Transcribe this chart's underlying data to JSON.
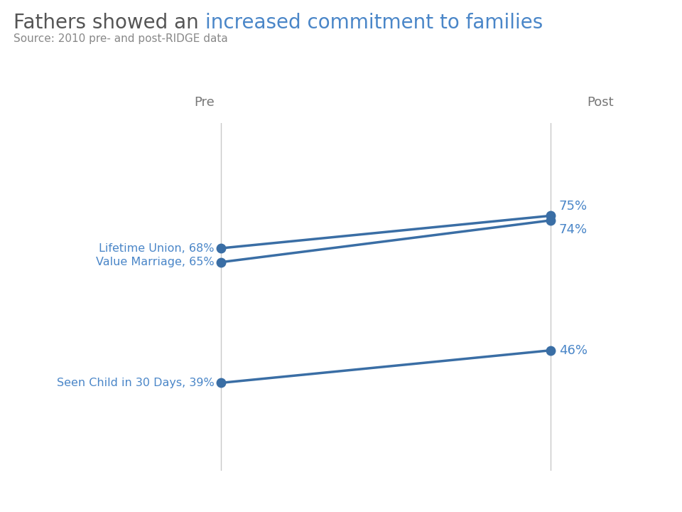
{
  "title_normal": "Fathers showed an ",
  "title_colored": "increased commitment to families",
  "subtitle": "Source: 2010 pre- and post-RIDGE data",
  "title_color": "#4a86c8",
  "text_color": "#4a86c8",
  "axis_color": "#c8c8c8",
  "background_color": "#ffffff",
  "series": [
    {
      "label_pre": "Lifetime Union, 68%",
      "label_post": "75%",
      "pre_val": 68,
      "post_val": 75
    },
    {
      "label_pre": "Value Marriage, 65%",
      "label_post": "74%",
      "pre_val": 65,
      "post_val": 74
    },
    {
      "label_pre": "Seen Child in 30 Days, 39%",
      "label_post": "46%",
      "pre_val": 39,
      "post_val": 46
    }
  ],
  "line_color": "#3a6ea5",
  "line_width": 2.5,
  "marker_size": 9,
  "header_color": "#777777",
  "header_fontsize": 13,
  "label_fontsize": 11.5,
  "post_label_fontsize": 13
}
